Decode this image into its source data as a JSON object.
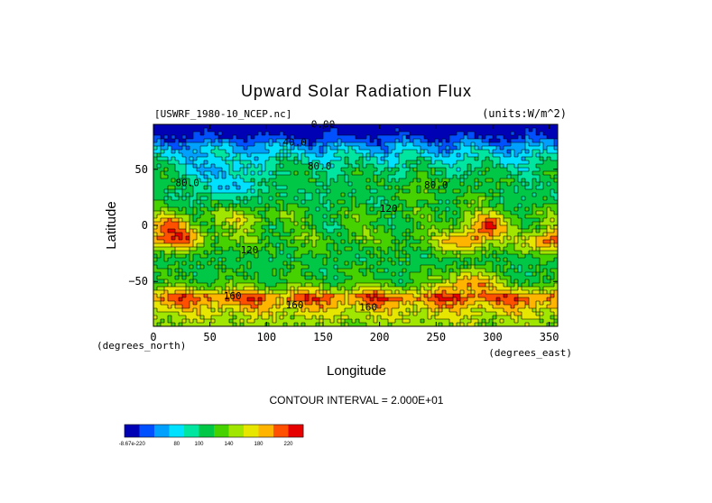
{
  "chart_data": {
    "type": "heatmap",
    "title": "Upward Solar Radiation Flux",
    "file_label": "[USWRF_1980-10_NCEP.nc]",
    "units_label": "(units:W/m^2)",
    "xlabel": "Longitude",
    "ylabel": "Latitude",
    "x_unit_label": "(degrees_east)",
    "y_unit_label": "(degrees_north)",
    "xlim": [
      0,
      357.5
    ],
    "ylim": [
      -90,
      90
    ],
    "x_ticks": [
      0,
      50,
      100,
      150,
      200,
      250,
      300,
      350
    ],
    "y_ticks": [
      50,
      0,
      -50
    ],
    "x_tick_labels": [
      "0",
      "50",
      "100",
      "150",
      "200",
      "250",
      "300",
      "350"
    ],
    "y_tick_labels": [
      "50",
      "0",
      "−50"
    ],
    "contour_interval_text": "CONTOUR INTERVAL = 2.000E+01",
    "contour_labels": [
      {
        "text": "0.00",
        "x": 150,
        "y": 87
      },
      {
        "text": "40.0",
        "x": 125,
        "y": 71
      },
      {
        "text": "80.0",
        "x": 147,
        "y": 50
      },
      {
        "text": "80.0",
        "x": 250,
        "y": 33
      },
      {
        "text": "80.0",
        "x": 30,
        "y": 35
      },
      {
        "text": "120",
        "x": 208,
        "y": 12
      },
      {
        "text": "120",
        "x": 85,
        "y": -25
      },
      {
        "text": "160",
        "x": 70,
        "y": -66
      },
      {
        "text": "160",
        "x": 125,
        "y": -74
      },
      {
        "text": "160",
        "x": 190,
        "y": -76
      }
    ],
    "colorbar": {
      "labels": [
        "-8.67e-220",
        "80",
        "100",
        "140",
        "180",
        "220"
      ],
      "colors": [
        "#0000b4",
        "#0050ff",
        "#00a0ff",
        "#00e0ff",
        "#00e6a0",
        "#00c846",
        "#46d200",
        "#a0e600",
        "#e6e600",
        "#ffb400",
        "#ff5000",
        "#e60000"
      ]
    },
    "latitude_profile": [
      {
        "lat": 90,
        "value": 0
      },
      {
        "lat": 82,
        "value": 10
      },
      {
        "lat": 75,
        "value": 35
      },
      {
        "lat": 68,
        "value": 60
      },
      {
        "lat": 60,
        "value": 80
      },
      {
        "lat": 50,
        "value": 100
      },
      {
        "lat": 40,
        "value": 110
      },
      {
        "lat": 30,
        "value": 105
      },
      {
        "lat": 20,
        "value": 110
      },
      {
        "lat": 10,
        "value": 125
      },
      {
        "lat": 0,
        "value": 115
      },
      {
        "lat": -10,
        "value": 130
      },
      {
        "lat": -20,
        "value": 120
      },
      {
        "lat": -30,
        "value": 110
      },
      {
        "lat": -40,
        "value": 115
      },
      {
        "lat": -50,
        "value": 120
      },
      {
        "lat": -58,
        "value": 160
      },
      {
        "lat": -64,
        "value": 210
      },
      {
        "lat": -70,
        "value": 190
      },
      {
        "lat": -76,
        "value": 170
      },
      {
        "lat": -83,
        "value": 155
      },
      {
        "lat": -90,
        "value": 145
      }
    ],
    "hotspots": [
      {
        "lon": 15,
        "lat": 2,
        "value": 180
      },
      {
        "lon": 25,
        "lat": -12,
        "value": 200
      },
      {
        "lon": 80,
        "lat": 5,
        "value": 160
      },
      {
        "lon": 275,
        "lat": -15,
        "value": 200
      },
      {
        "lon": 295,
        "lat": 0,
        "value": 200
      },
      {
        "lon": 345,
        "lat": -15,
        "value": 200
      },
      {
        "lon": 280,
        "lat": -50,
        "value": 200
      },
      {
        "lon": 55,
        "lat": 50,
        "value": 60
      },
      {
        "lon": 70,
        "lat": 35,
        "value": 60
      },
      {
        "lon": 235,
        "lat": 30,
        "value": 130
      },
      {
        "lon": 285,
        "lat": 25,
        "value": 130
      }
    ]
  }
}
